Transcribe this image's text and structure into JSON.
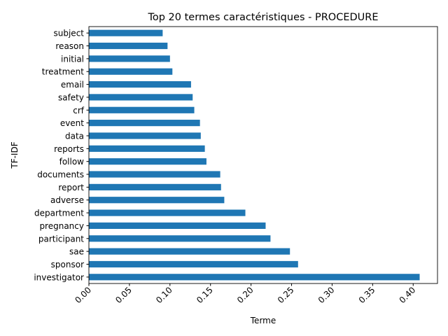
{
  "chart_data": {
    "type": "bar",
    "orientation": "horizontal",
    "title": "Top 20 termes caractéristiques - PROCEDURE",
    "xlabel": "Terme",
    "ylabel": "TF-IDF",
    "xlim": [
      0,
      0.43
    ],
    "xticks": [
      "0.00",
      "0.05",
      "0.10",
      "0.15",
      "0.20",
      "0.25",
      "0.30",
      "0.35",
      "0.40"
    ],
    "grid": false,
    "categories": [
      "investigator",
      "sponsor",
      "sae",
      "participant",
      "pregnancy",
      "department",
      "adverse",
      "report",
      "documents",
      "follow",
      "reports",
      "data",
      "event",
      "crf",
      "safety",
      "email",
      "treatment",
      "initial",
      "reason",
      "subject"
    ],
    "values": [
      0.408,
      0.258,
      0.248,
      0.224,
      0.218,
      0.193,
      0.167,
      0.163,
      0.162,
      0.145,
      0.143,
      0.138,
      0.137,
      0.13,
      0.128,
      0.126,
      0.103,
      0.1,
      0.097,
      0.091
    ],
    "color": "#1f77b4"
  }
}
